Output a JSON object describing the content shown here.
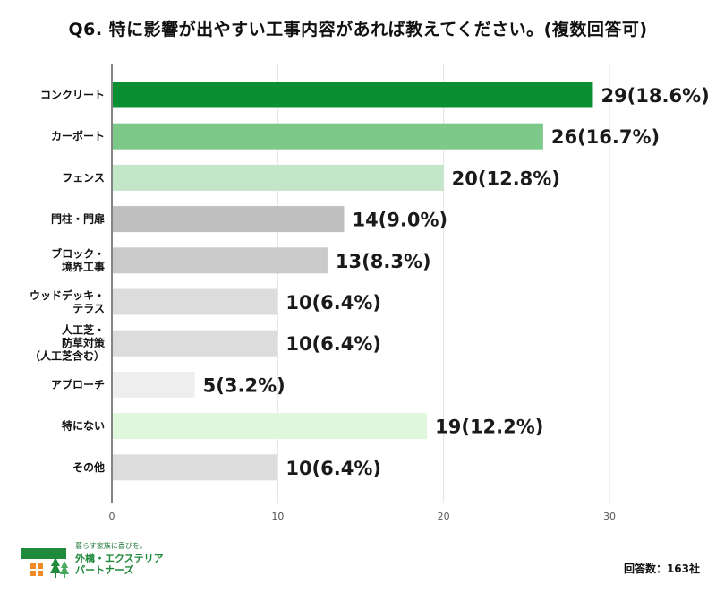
{
  "title": "Q6. 特に影響が出やすい工事内容があれば教えてください。(複数回答可)",
  "chart_data": {
    "type": "bar",
    "orientation": "horizontal",
    "categories": [
      [
        "コンクリート"
      ],
      [
        "カーポート"
      ],
      [
        "フェンス"
      ],
      [
        "門柱・門扉"
      ],
      [
        "ブロック・",
        "境界工事"
      ],
      [
        "ウッドデッキ・",
        "テラス"
      ],
      [
        "人工芝・",
        "防草対策",
        "（人工芝含む）"
      ],
      [
        "アプローチ"
      ],
      [
        "特にない"
      ],
      [
        "その他"
      ]
    ],
    "values": [
      29,
      26,
      20,
      14,
      13,
      10,
      10,
      5,
      19,
      10
    ],
    "value_labels": [
      "29(18.6%)",
      "26(16.7%)",
      "20(12.8%)",
      "14(9.0%)",
      "13(8.3%)",
      "10(6.4%)",
      "10(6.4%)",
      "5(3.2%)",
      "19(12.2%)",
      "10(6.4%)"
    ],
    "colors": [
      "#0a8f32",
      "#7dc98a",
      "#c3e6c8",
      "#bfbfbf",
      "#cacaca",
      "#dcdcdc",
      "#dcdcdc",
      "#eeeeee",
      "#dff8dd",
      "#dcdcdc"
    ],
    "xlim": [
      0,
      30
    ],
    "xticks": [
      0,
      10,
      20,
      30
    ],
    "grid": true
  },
  "footer": {
    "logo_tagline": "暮らす家族に喜びを。",
    "logo_name_line1": "外構・エクステリア",
    "logo_name_line2": "パートナーズ",
    "respondents": "回答数：163社"
  },
  "logo_colors": {
    "roof": "#1f8a3c",
    "window": "#f08a24",
    "tree": "#1f8a3c"
  }
}
